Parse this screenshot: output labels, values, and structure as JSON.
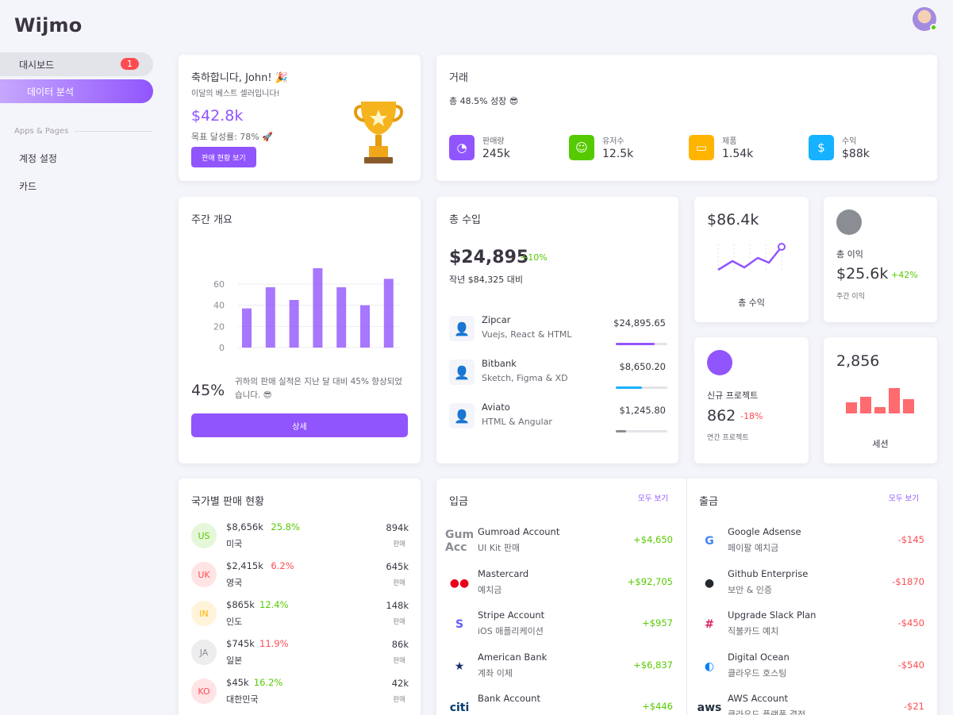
{
  "brand": "Wijmo",
  "sidebar": {
    "dashboard_label": "대시보드",
    "dashboard_badge": "1",
    "analytics_label": "데이터 분석",
    "section_label": "Apps & Pages",
    "account_settings_label": "계정 설정",
    "cards_label": "카드"
  },
  "congrats": {
    "title": "축하합니다, John! 🎉",
    "subtitle": "이달의 베스트 셀러입니다!",
    "amount": "$42.8k",
    "goal_text": "목표 달성률: 78% 🚀",
    "button_label": "판매 현황 보기"
  },
  "transactions": {
    "title": "거래",
    "subtitle": "총 48.5% 성장 😎",
    "stats": [
      {
        "label": "판매량",
        "value": "245k",
        "color": "#9155fd",
        "icon": "trending-up-icon"
      },
      {
        "label": "유저수",
        "value": "12.5k",
        "color": "#56ca00",
        "icon": "account-icon"
      },
      {
        "label": "제품",
        "value": "1.54k",
        "color": "#ffb400",
        "icon": "laptop-icon"
      },
      {
        "label": "수익",
        "value": "$88k",
        "color": "#16b1ff",
        "icon": "dollar-icon"
      }
    ]
  },
  "weekly": {
    "title": "주간 개요",
    "percent": "45%",
    "description": "귀하의 판매 실적은 지난 달 대비 45% 향상되었습니다. 😎",
    "button_label": "상세"
  },
  "chart_data": {
    "type": "bar",
    "categories": [
      "",
      "",
      "",
      "",
      "",
      "",
      ""
    ],
    "values": [
      37,
      57,
      45,
      75,
      57,
      40,
      65
    ],
    "ylim": [
      0,
      75
    ],
    "yticks": [
      "0",
      "20",
      "40",
      "60"
    ],
    "color": "#9155fd"
  },
  "earning": {
    "title": "총 수입",
    "amount": "$24,895",
    "change": "+10%",
    "compare": "작년 $84,325 대비",
    "items": [
      {
        "name": "Zipcar",
        "sub": "Vuejs, React & HTML",
        "amount": "$24,895.65",
        "progress": 0.75,
        "color": "#9155fd"
      },
      {
        "name": "Bitbank",
        "sub": "Sketch, Figma & XD",
        "amount": "$8,650.20",
        "progress": 0.5,
        "color": "#16b1ff"
      },
      {
        "name": "Aviato",
        "sub": "HTML & Angular",
        "amount": "$1,245.80",
        "progress": 0.2,
        "color": "#8a8d93"
      }
    ]
  },
  "total_revenue": {
    "value": "$86.4k",
    "label": "총 수익"
  },
  "total_profit": {
    "label": "총 이익",
    "value": "$25.6k",
    "change": "+42%",
    "sub": "주간 이익"
  },
  "new_project": {
    "label": "신규 프로젝트",
    "value": "862",
    "change": "-18%",
    "sub": "연간 프로젝트"
  },
  "sessions": {
    "value": "2,856",
    "label": "세션"
  },
  "country_sales": {
    "title": "국가별 판매 현황",
    "rows": [
      {
        "code": "US",
        "amount": "$8,656k",
        "pct": "25.8%",
        "trend": "up",
        "name": "미국",
        "count": "894k",
        "unit": "판매",
        "bg": "#e6f7d9",
        "fg": "#56ca00"
      },
      {
        "code": "UK",
        "amount": "$2,415k",
        "pct": "6.2%",
        "trend": "down",
        "name": "영국",
        "count": "645k",
        "unit": "판매",
        "bg": "#ffe4e5",
        "fg": "#ff4c51"
      },
      {
        "code": "IN",
        "amount": "$865k",
        "pct": "12.4%",
        "trend": "up",
        "name": "인도",
        "count": "148k",
        "unit": "판매",
        "bg": "#fff4d9",
        "fg": "#ffb400"
      },
      {
        "code": "JA",
        "amount": "$745k",
        "pct": "11.9%",
        "trend": "down",
        "name": "일본",
        "count": "86k",
        "unit": "판매",
        "bg": "#ededee",
        "fg": "#8a8d93"
      },
      {
        "code": "KO",
        "amount": "$45k",
        "pct": "16.2%",
        "trend": "up",
        "name": "대한민국",
        "count": "42k",
        "unit": "판매",
        "bg": "#ffe4e5",
        "fg": "#ff4c51"
      }
    ]
  },
  "deposit": {
    "title": "입금",
    "view_all": "모두 보기",
    "items": [
      {
        "name": "Gumroad Account",
        "sub": "UI Kit 판매",
        "amount": "+$4,650",
        "logo": "Gum\nAcc"
      },
      {
        "name": "Mastercard",
        "sub": "예치금",
        "amount": "+$92,705",
        "logo": "●●"
      },
      {
        "name": "Stripe Account",
        "sub": "iOS 애플리케이션",
        "amount": "+$957",
        "logo": "S"
      },
      {
        "name": "American Bank",
        "sub": "계좌 이체",
        "amount": "+$6,837",
        "logo": "★"
      },
      {
        "name": "Bank Account",
        "sub": "",
        "amount": "+$446",
        "logo": "citi"
      }
    ]
  },
  "withdraw": {
    "title": "출금",
    "view_all": "모두 보기",
    "items": [
      {
        "name": "Google Adsense",
        "sub": "페이팔 예치금",
        "amount": "-$145",
        "logo": "G"
      },
      {
        "name": "Github Enterprise",
        "sub": "보안 & 인증",
        "amount": "-$1870",
        "logo": "●"
      },
      {
        "name": "Upgrade Slack Plan",
        "sub": "직불카드 예치",
        "amount": "-$450",
        "logo": "#"
      },
      {
        "name": "Digital Ocean",
        "sub": "클라우드 호스팅",
        "amount": "-$540",
        "logo": "◐"
      },
      {
        "name": "AWS Account",
        "sub": "클라우드 플랫폼 결정",
        "amount": "-$21",
        "logo": "aws"
      }
    ]
  }
}
